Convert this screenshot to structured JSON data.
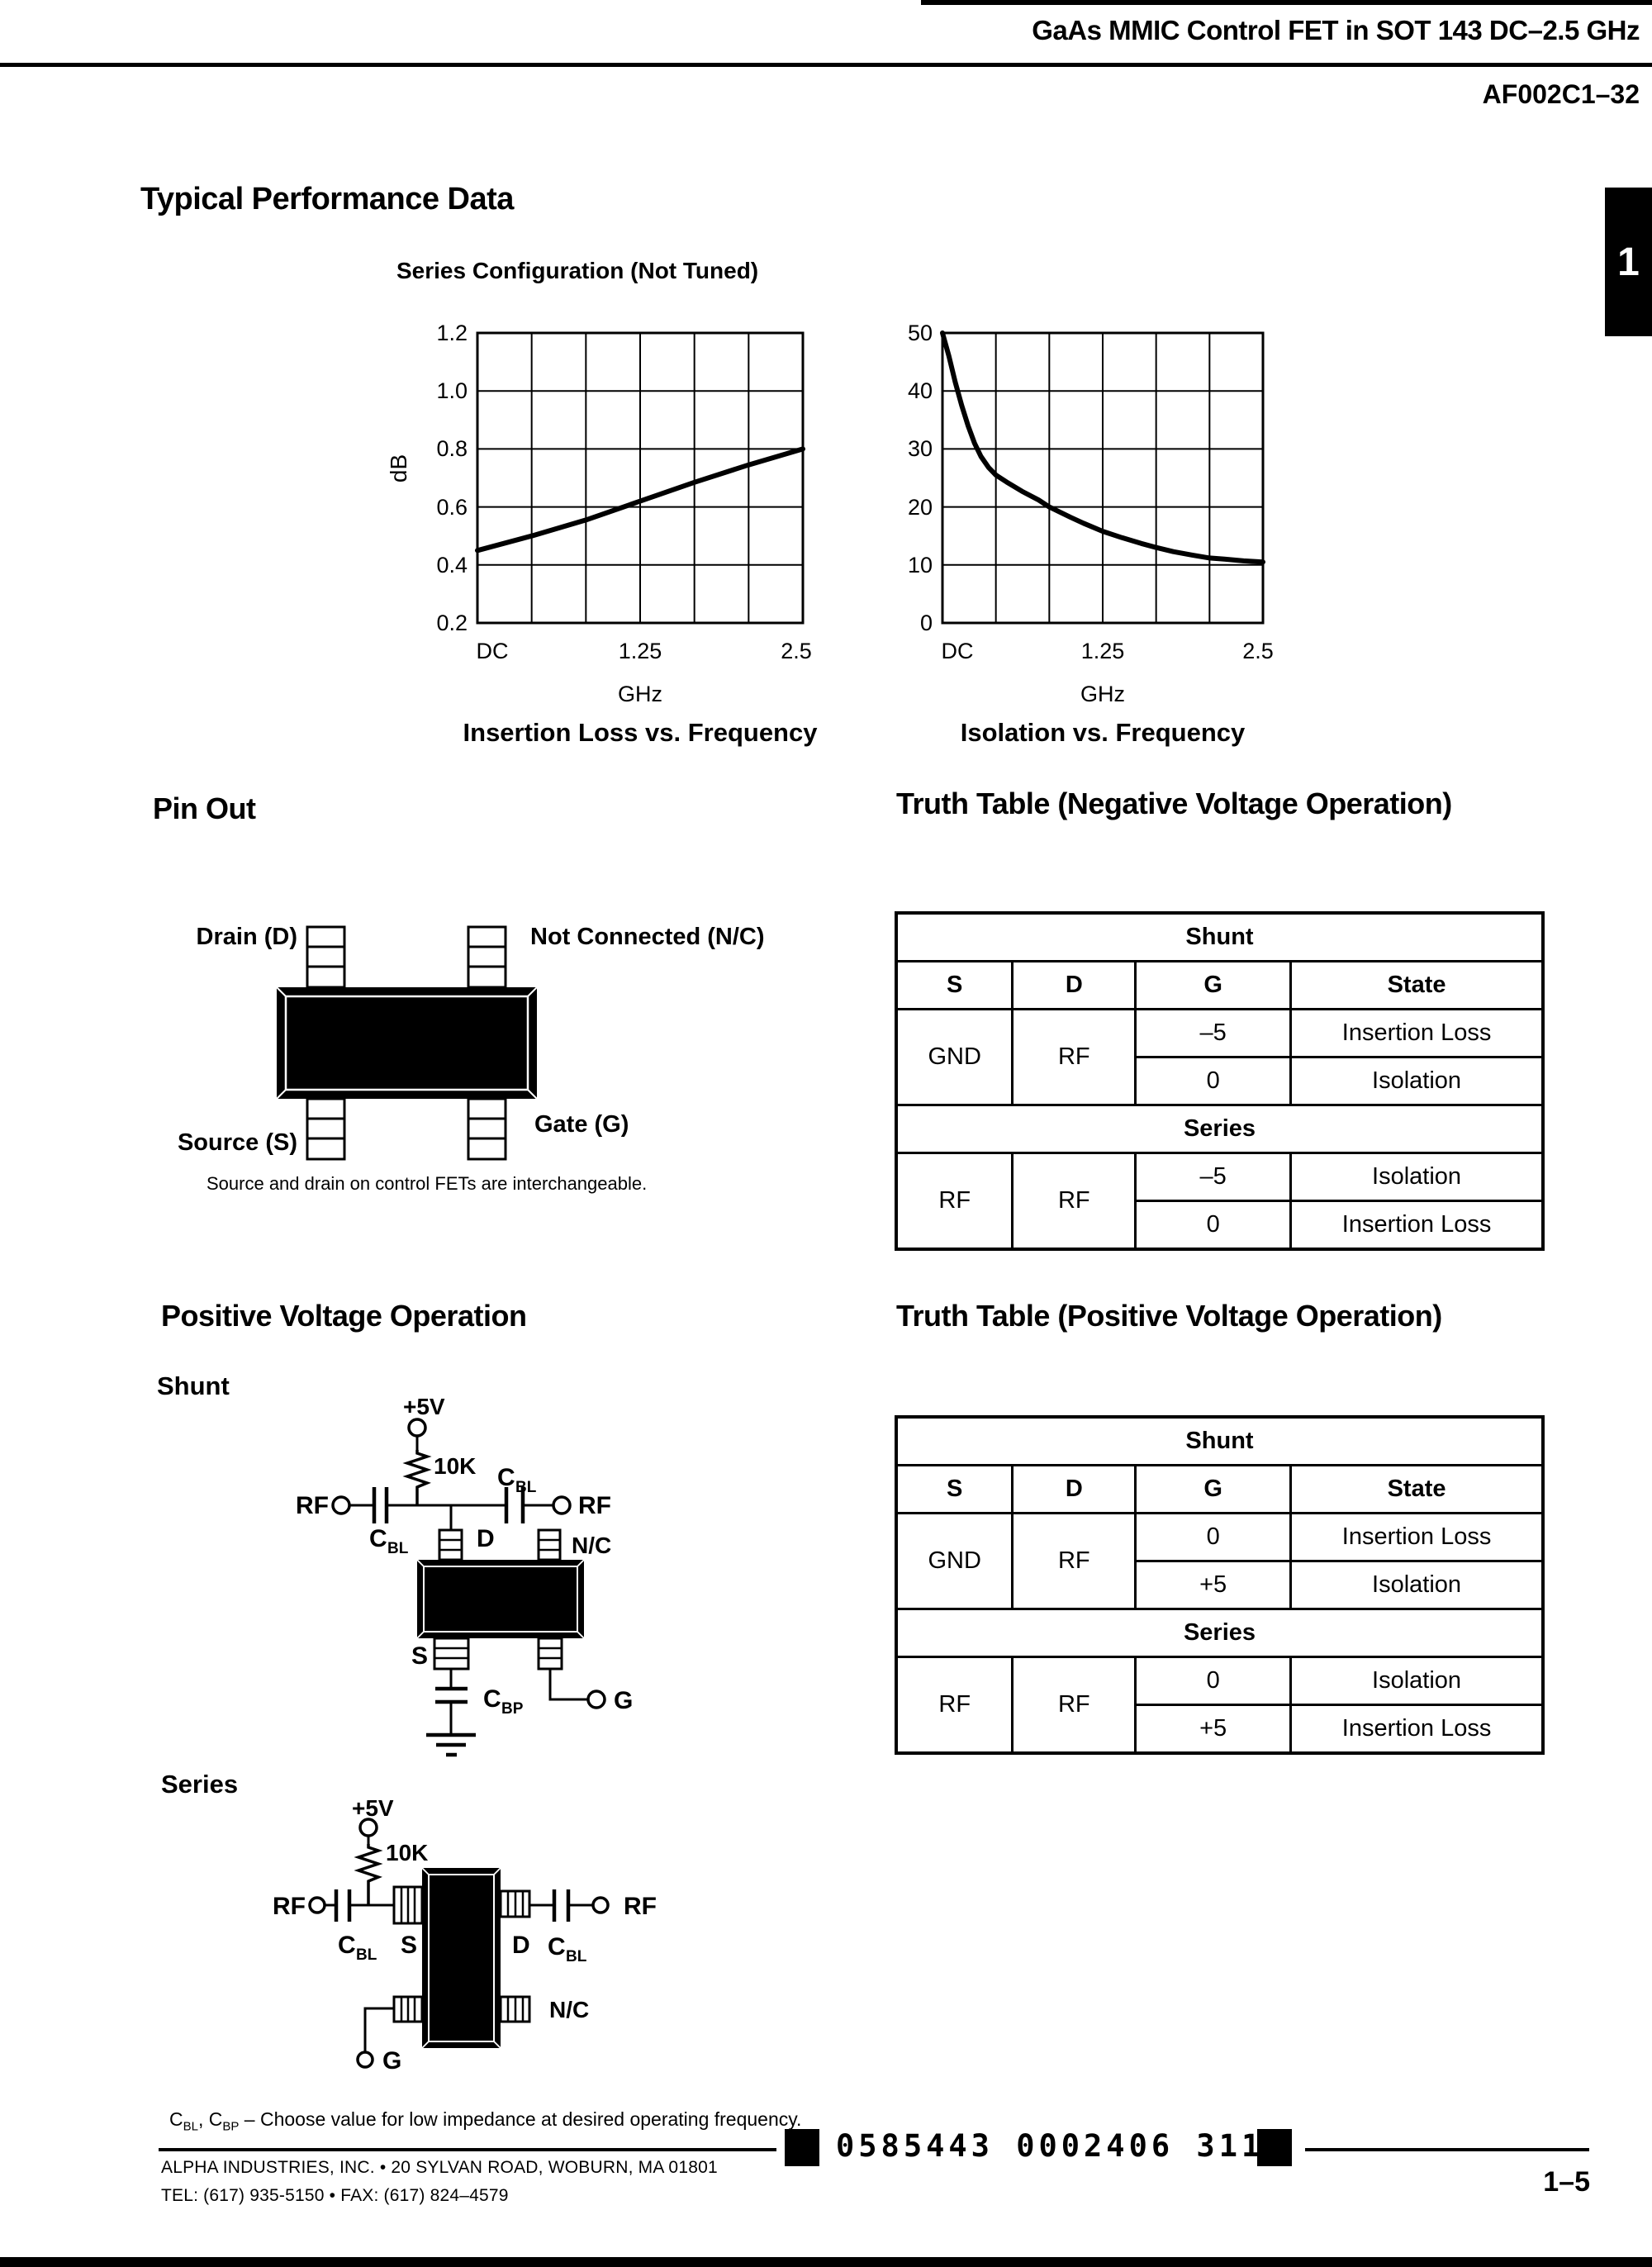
{
  "page": {
    "title": "GaAs MMIC Control FET in SOT 143 DC–2.5 GHz",
    "part_number": "AF002C1–32",
    "side_tab_label": "1",
    "page_number": "1–5",
    "stamp_number": "0585443 0002406 311",
    "footer": {
      "address": "ALPHA INDUSTRIES, INC. • 20 SYLVAN ROAD, WOBURN, MA 01801",
      "phone": "TEL: (617) 935-5150 • FAX: (617) 824–4579"
    },
    "ink_color": "#000000",
    "paper_color": "#ffffff"
  },
  "performance": {
    "heading": "Typical Performance Data",
    "subtitle": "Series Configuration (Not Tuned)"
  },
  "chart_data": [
    {
      "type": "line",
      "title": "Insertion Loss vs. Frequency",
      "xlabel": "GHz",
      "ylabel": "dB",
      "xlim": [
        0,
        2.5
      ],
      "ylim": [
        0.2,
        1.2
      ],
      "xtick_labels": [
        "DC",
        "1.25",
        "2.5"
      ],
      "ytick_labels": [
        "1.2",
        "1.0",
        "0.8",
        "0.6",
        "0.4",
        "0.2"
      ],
      "x_divisions": 6,
      "y_divisions": 5,
      "grid": true,
      "legend": "none",
      "series": [
        {
          "name": "Insertion Loss (dB)",
          "x": [
            0,
            0.417,
            0.833,
            1.25,
            1.667,
            2.083,
            2.5
          ],
          "y": [
            0.45,
            0.5,
            0.555,
            0.62,
            0.685,
            0.745,
            0.8
          ]
        }
      ]
    },
    {
      "type": "line",
      "title": "Isolation vs. Frequency",
      "xlabel": "GHz",
      "ylabel": "",
      "xlim": [
        0,
        2.5
      ],
      "ylim": [
        0,
        50
      ],
      "xtick_labels": [
        "DC",
        "1.25",
        "2.5"
      ],
      "ytick_labels": [
        "50",
        "40",
        "30",
        "20",
        "10",
        "0"
      ],
      "x_divisions": 6,
      "y_divisions": 5,
      "grid": true,
      "legend": "none",
      "series": [
        {
          "name": "Isolation (dB)",
          "x": [
            0,
            0.05,
            0.1,
            0.15,
            0.2,
            0.25,
            0.3,
            0.36,
            0.417,
            0.5,
            0.62,
            0.75,
            0.833,
            1.0,
            1.1,
            1.25,
            1.4,
            1.55,
            1.667,
            1.8,
            1.95,
            2.083,
            2.2,
            2.35,
            2.5
          ],
          "y": [
            50,
            46,
            41.5,
            37.5,
            34,
            31,
            28.7,
            26.8,
            25.5,
            24.3,
            22.7,
            21.2,
            20,
            18.2,
            17.2,
            15.8,
            14.7,
            13.7,
            13,
            12.3,
            11.7,
            11.2,
            11,
            10.7,
            10.5
          ]
        }
      ]
    }
  ],
  "pinout": {
    "heading": "Pin Out",
    "drain": "Drain (D)",
    "not_connected": "Not Connected (N/C)",
    "source": "Source (S)",
    "gate": "Gate (G)",
    "note": "Source and drain on control FETs are interchangeable."
  },
  "truth_table_negative": {
    "heading": "Truth Table (Negative Voltage Operation)",
    "shunt_band": "Shunt",
    "series_band": "Series",
    "columns": [
      "S",
      "D",
      "G",
      "State"
    ],
    "shunt": {
      "s": "GND",
      "d": "RF",
      "rows": [
        {
          "g": "–5",
          "state": "Insertion Loss"
        },
        {
          "g": "0",
          "state": "Isolation"
        }
      ]
    },
    "series": {
      "s": "RF",
      "d": "RF",
      "rows": [
        {
          "g": "–5",
          "state": "Isolation"
        },
        {
          "g": "0",
          "state": "Insertion Loss"
        }
      ]
    }
  },
  "truth_table_positive": {
    "heading": "Truth Table (Positive Voltage Operation)",
    "shunt_band": "Shunt",
    "series_band": "Series",
    "columns": [
      "S",
      "D",
      "G",
      "State"
    ],
    "shunt": {
      "s": "GND",
      "d": "RF",
      "rows": [
        {
          "g": "0",
          "state": "Insertion Loss"
        },
        {
          "g": "+5",
          "state": "Isolation"
        }
      ]
    },
    "series": {
      "s": "RF",
      "d": "RF",
      "rows": [
        {
          "g": "0",
          "state": "Isolation"
        },
        {
          "g": "+5",
          "state": "Insertion Loss"
        }
      ]
    }
  },
  "positive_operation": {
    "heading": "Positive Voltage Operation",
    "shunt_label": "Shunt",
    "series_label": "Series",
    "supply": "+5V",
    "resistor": "10K",
    "rf": "RF",
    "pin_d": "D",
    "pin_s": "S",
    "pin_g": "G",
    "pin_nc": "N/C",
    "cap_bl": {
      "base": "C",
      "sub": "BL"
    },
    "cap_bp": {
      "base": "C",
      "sub": "BP"
    },
    "note_separator": ", ",
    "note_suffix": " – Choose value for low impedance at desired operating frequency."
  }
}
